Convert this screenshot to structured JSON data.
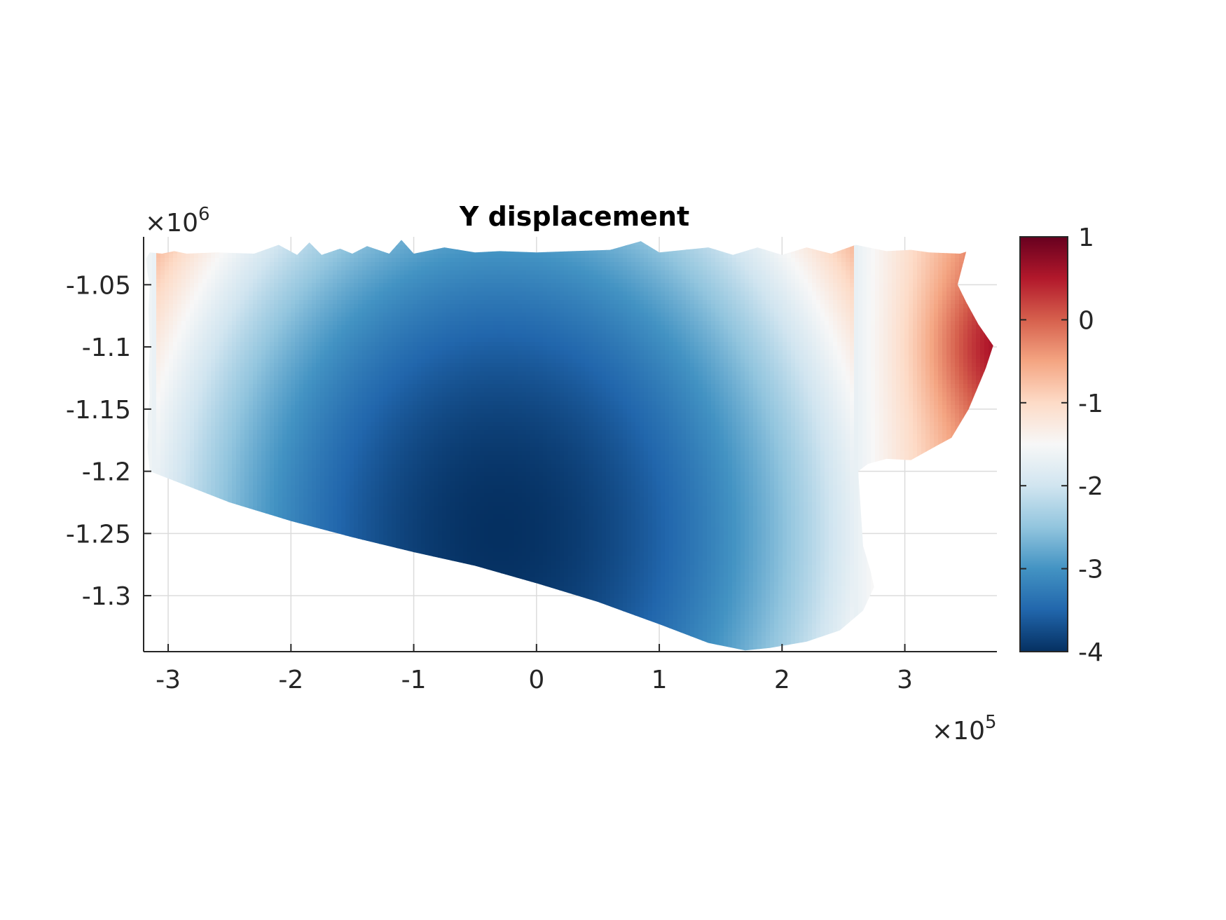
{
  "chart_data": {
    "type": "heatmap",
    "title": "Y displacement",
    "xlabel": "",
    "ylabel": "",
    "x_exponent_label": "×10",
    "x_exponent": "5",
    "y_exponent_label": "×10",
    "y_exponent": "6",
    "xlim": [
      -3.2,
      3.75
    ],
    "ylim": [
      -1.345,
      -1.0115
    ],
    "x_ticks": [
      -3,
      -2,
      -1,
      0,
      1,
      2,
      3
    ],
    "x_tick_labels": [
      "-3",
      "-2",
      "-1",
      "0",
      "1",
      "2",
      "3"
    ],
    "y_ticks": [
      -1.3,
      -1.25,
      -1.2,
      -1.15,
      -1.1,
      -1.05
    ],
    "y_tick_labels": [
      "-1.3",
      "-1.25",
      "-1.2",
      "-1.15",
      "-1.1",
      "-1.05"
    ],
    "grid": true,
    "colorbar": {
      "limits": [
        -4,
        1
      ],
      "ticks": [
        1,
        0,
        -1,
        -2,
        -3,
        -4
      ],
      "tick_labels": [
        "1",
        "0",
        "-1",
        "-2",
        "-3",
        "-4"
      ],
      "colormap": [
        "#053061",
        "#2166ac",
        "#4393c3",
        "#92c5de",
        "#d1e5f0",
        "#f7f7f7",
        "#fddbc7",
        "#f4a582",
        "#d6604d",
        "#b2182b",
        "#67001f"
      ]
    },
    "domain_outline": [
      [
        -3.18,
        -1.029
      ],
      [
        -3.15,
        -1.024
      ],
      [
        -3.05,
        -1.025
      ],
      [
        -2.95,
        -1.023
      ],
      [
        -2.85,
        -1.025
      ],
      [
        -2.6,
        -1.024
      ],
      [
        -2.3,
        -1.025
      ],
      [
        -2.1,
        -1.018
      ],
      [
        -1.95,
        -1.026
      ],
      [
        -1.85,
        -1.016
      ],
      [
        -1.75,
        -1.026
      ],
      [
        -1.6,
        -1.021
      ],
      [
        -1.5,
        -1.025
      ],
      [
        -1.38,
        -1.019
      ],
      [
        -1.2,
        -1.025
      ],
      [
        -1.1,
        -1.014
      ],
      [
        -1.0,
        -1.025
      ],
      [
        -0.75,
        -1.02
      ],
      [
        -0.5,
        -1.024
      ],
      [
        -0.3,
        -1.023
      ],
      [
        0.0,
        -1.024
      ],
      [
        0.3,
        -1.023
      ],
      [
        0.6,
        -1.022
      ],
      [
        0.85,
        -1.015
      ],
      [
        1.0,
        -1.024
      ],
      [
        1.4,
        -1.02
      ],
      [
        1.6,
        -1.026
      ],
      [
        1.8,
        -1.02
      ],
      [
        2.0,
        -1.026
      ],
      [
        2.2,
        -1.02
      ],
      [
        2.4,
        -1.025
      ],
      [
        2.6,
        -1.018
      ],
      [
        2.85,
        -1.023
      ],
      [
        3.05,
        -1.022
      ],
      [
        3.2,
        -1.024
      ],
      [
        3.45,
        -1.025
      ],
      [
        3.5,
        -1.0235
      ],
      [
        3.43,
        -1.05
      ],
      [
        3.5,
        -1.064
      ],
      [
        3.6,
        -1.082
      ],
      [
        3.72,
        -1.099
      ],
      [
        3.66,
        -1.117
      ],
      [
        3.52,
        -1.15
      ],
      [
        3.38,
        -1.173
      ],
      [
        3.25,
        -1.18
      ],
      [
        3.05,
        -1.191
      ],
      [
        2.85,
        -1.19
      ],
      [
        2.7,
        -1.194
      ],
      [
        2.62,
        -1.2
      ],
      [
        2.64,
        -1.23
      ],
      [
        2.66,
        -1.26
      ],
      [
        2.72,
        -1.28
      ],
      [
        2.75,
        -1.293
      ],
      [
        2.66,
        -1.312
      ],
      [
        2.47,
        -1.328
      ],
      [
        2.2,
        -1.337
      ],
      [
        1.9,
        -1.342
      ],
      [
        1.7,
        -1.344
      ],
      [
        1.4,
        -1.338
      ],
      [
        1.0,
        -1.323
      ],
      [
        0.5,
        -1.305
      ],
      [
        0.0,
        -1.29
      ],
      [
        -0.5,
        -1.276
      ],
      [
        -1.0,
        -1.265
      ],
      [
        -1.5,
        -1.253
      ],
      [
        -2.0,
        -1.24
      ],
      [
        -2.5,
        -1.225
      ],
      [
        -3.15,
        -1.2
      ],
      [
        -3.16,
        -1.19
      ],
      [
        -3.17,
        -1.18
      ],
      [
        -3.16,
        -1.17
      ],
      [
        -3.17,
        -1.16
      ],
      [
        -3.15,
        -1.14
      ],
      [
        -3.16,
        -1.12
      ],
      [
        -3.15,
        -1.1
      ],
      [
        -3.16,
        -1.07
      ],
      [
        -3.15,
        -1.05
      ],
      [
        -3.17,
        -1.04
      ]
    ],
    "field_model": {
      "minimum": -4.0,
      "minimum_location": [
        -0.3,
        -1.25
      ],
      "zero_contour_x": [
        -3.1,
        2.6
      ],
      "east_maximum": 0.4,
      "east_maximum_location": [
        3.7,
        -1.1
      ]
    }
  }
}
